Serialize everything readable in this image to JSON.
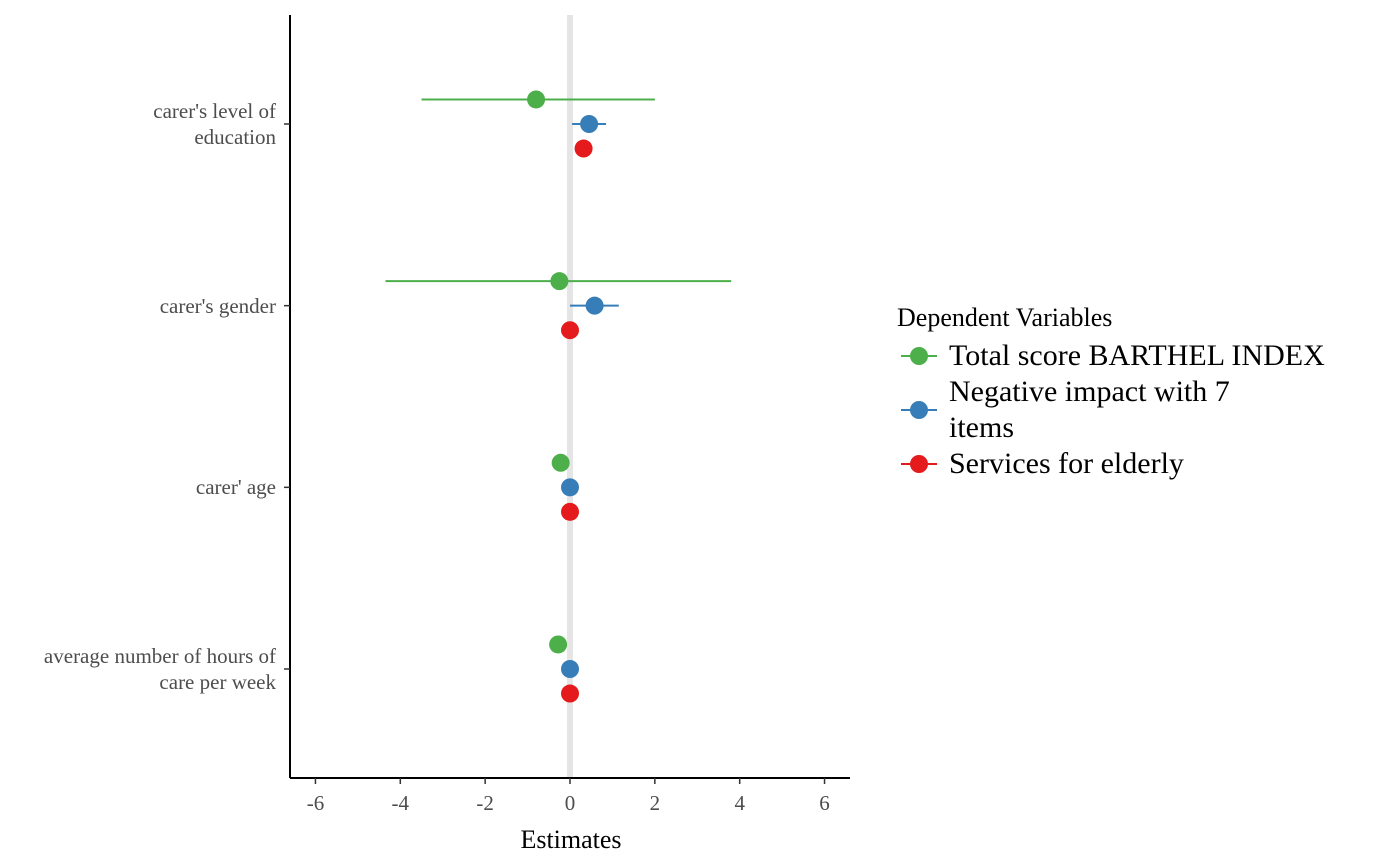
{
  "chart_data": {
    "type": "forest",
    "x_label": "Estimates",
    "categories": [
      "carer's level of\neducation",
      "carer's gender",
      "carer' age",
      "average number of hours of\ncare per week"
    ],
    "xlim": [
      -6.6,
      6.6
    ],
    "xticks": [
      -6,
      -4,
      -2,
      0,
      2,
      4,
      6
    ],
    "vline": 0,
    "legend_title": "Dependent Variables",
    "legend_position": "right",
    "series": [
      {
        "name": "Total score BARTHEL INDEX",
        "color": "#4daf4a",
        "values": [
          -0.8,
          -0.25,
          -0.22,
          -0.28
        ],
        "lower": [
          -3.5,
          -4.35,
          -0.3,
          -0.33
        ],
        "upper": [
          2.0,
          3.8,
          -0.14,
          -0.23
        ]
      },
      {
        "name": "Negative impact with 7\nitems",
        "color": "#377eb8",
        "values": [
          0.45,
          0.58,
          0.0,
          0.0
        ],
        "lower": [
          0.05,
          0.0,
          -0.02,
          -0.02
        ],
        "upper": [
          0.85,
          1.15,
          0.02,
          0.02
        ]
      },
      {
        "name": "Services for elderly",
        "color": "#e41a1c",
        "values": [
          0.32,
          0.0,
          0.0,
          0.0
        ],
        "lower": [
          0.27,
          -0.03,
          -0.02,
          -0.02
        ],
        "upper": [
          0.37,
          0.03,
          0.02,
          0.02
        ]
      }
    ]
  }
}
